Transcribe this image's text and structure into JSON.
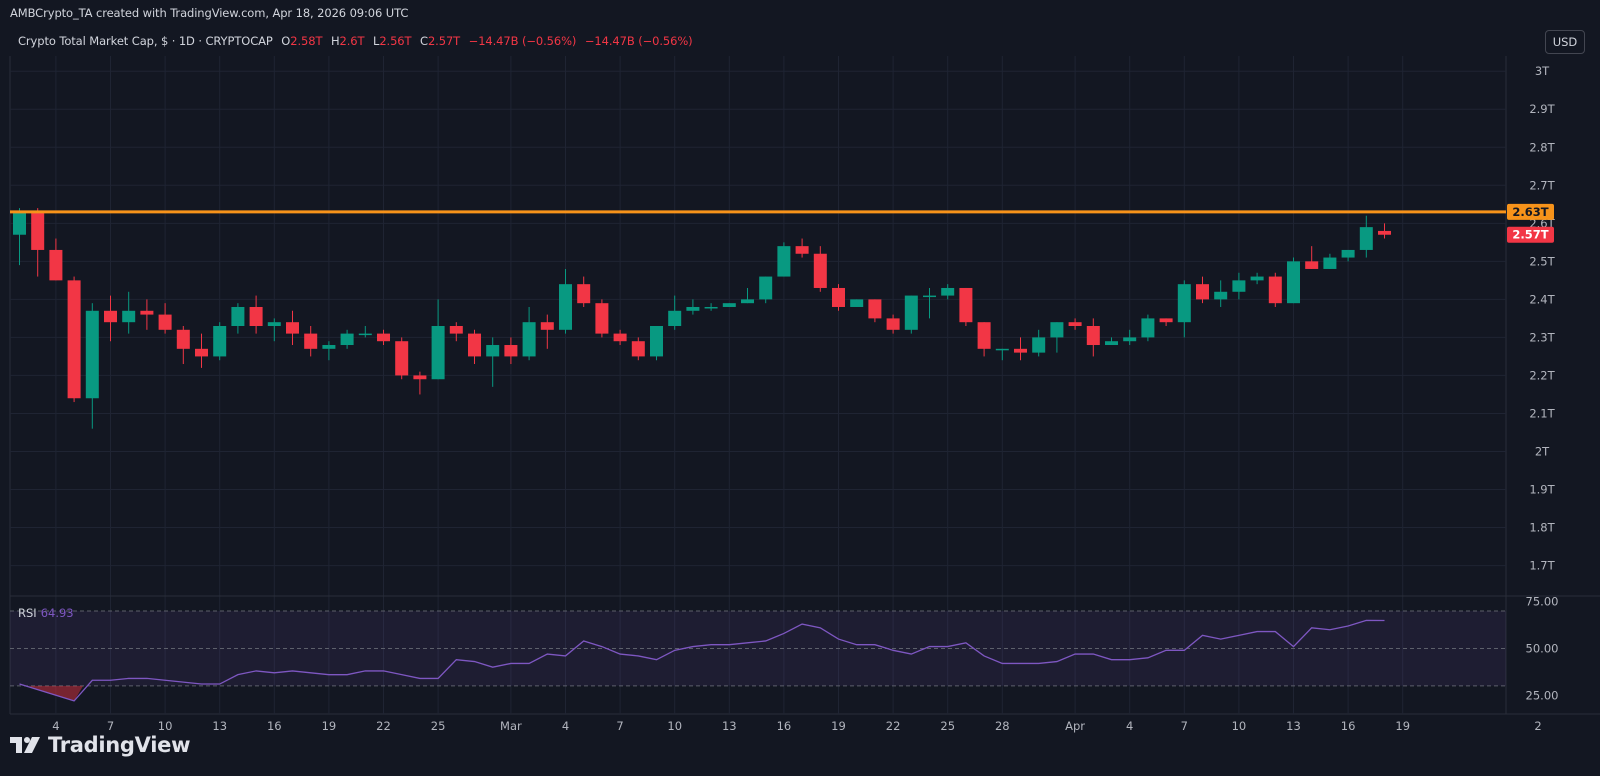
{
  "attribution": "AMBCrypto_TA created with TradingView.com, Apr 18, 2026 09:06 UTC",
  "currency_button": "USD",
  "brand": "TradingView",
  "legend": {
    "symbol": "Crypto Total Market Cap, $ · 1D · CRYPTOCAP",
    "open_key": "O",
    "open": "2.58T",
    "high_key": "H",
    "high": "2.6T",
    "low_key": "L",
    "low": "2.56T",
    "close_key": "C",
    "close": "2.57T",
    "change_abs": "−14.47B",
    "change_pct": "(−0.56%)",
    "change_abs2": "−14.47B",
    "change_pct2": "(−0.56%)"
  },
  "rsi": {
    "label": "RSI",
    "value": "64.93"
  },
  "colors": {
    "background": "#131722",
    "up": "#089981",
    "down": "#f23645",
    "level_line": "#f7931a",
    "rsi_line": "#7e57c2",
    "grid": "#1f2433"
  },
  "chart_data": [
    {
      "type": "candlestick",
      "title": "Crypto Total Market Cap, $ · 1D · CRYPTOCAP",
      "y_unit": "T",
      "ylim": [
        1.62,
        3.04
      ],
      "y_ticks": [
        "3T",
        "2.9T",
        "2.8T",
        "2.7T",
        "2.6T",
        "2.5T",
        "2.4T",
        "2.3T",
        "2.2T",
        "2.1T",
        "2T",
        "1.9T",
        "1.8T",
        "1.7T"
      ],
      "y_tick_values": [
        3.0,
        2.9,
        2.8,
        2.7,
        2.6,
        2.5,
        2.4,
        2.3,
        2.2,
        2.1,
        2.0,
        1.9,
        1.8,
        1.7
      ],
      "x_tick_labels": [
        "4",
        "7",
        "10",
        "13",
        "16",
        "19",
        "22",
        "25",
        "Mar",
        "4",
        "7",
        "10",
        "13",
        "16",
        "19",
        "22",
        "25",
        "28",
        "Apr",
        "4",
        "7",
        "10",
        "13",
        "16",
        "19",
        "2"
      ],
      "x_tick_dates": [
        "2026-02-04",
        "2026-02-07",
        "2026-02-10",
        "2026-02-13",
        "2026-02-16",
        "2026-02-19",
        "2026-02-22",
        "2026-02-25",
        "2026-03-01",
        "2026-03-04",
        "2026-03-07",
        "2026-03-10",
        "2026-03-13",
        "2026-03-16",
        "2026-03-19",
        "2026-03-22",
        "2026-03-25",
        "2026-03-28",
        "2026-04-01",
        "2026-04-04",
        "2026-04-07",
        "2026-04-10",
        "2026-04-13",
        "2026-04-16",
        "2026-04-19",
        "2026-05-02"
      ],
      "first_date": "2026-02-02",
      "horizontal_level": {
        "value": 2.63,
        "label": "2.63T"
      },
      "last_price": {
        "value": 2.57,
        "label": "2.57T"
      },
      "candles": [
        {
          "o": 2.57,
          "h": 2.64,
          "l": 2.49,
          "c": 2.63
        },
        {
          "o": 2.63,
          "h": 2.64,
          "l": 2.46,
          "c": 2.53
        },
        {
          "o": 2.53,
          "h": 2.56,
          "l": 2.45,
          "c": 2.45
        },
        {
          "o": 2.45,
          "h": 2.46,
          "l": 2.13,
          "c": 2.14
        },
        {
          "o": 2.14,
          "h": 2.39,
          "l": 2.06,
          "c": 2.37
        },
        {
          "o": 2.37,
          "h": 2.41,
          "l": 2.29,
          "c": 2.34
        },
        {
          "o": 2.34,
          "h": 2.42,
          "l": 2.31,
          "c": 2.37
        },
        {
          "o": 2.37,
          "h": 2.4,
          "l": 2.32,
          "c": 2.36
        },
        {
          "o": 2.36,
          "h": 2.39,
          "l": 2.31,
          "c": 2.32
        },
        {
          "o": 2.32,
          "h": 2.33,
          "l": 2.23,
          "c": 2.27
        },
        {
          "o": 2.27,
          "h": 2.31,
          "l": 2.22,
          "c": 2.25
        },
        {
          "o": 2.25,
          "h": 2.34,
          "l": 2.24,
          "c": 2.33
        },
        {
          "o": 2.33,
          "h": 2.39,
          "l": 2.31,
          "c": 2.38
        },
        {
          "o": 2.38,
          "h": 2.41,
          "l": 2.31,
          "c": 2.33
        },
        {
          "o": 2.33,
          "h": 2.35,
          "l": 2.29,
          "c": 2.34
        },
        {
          "o": 2.34,
          "h": 2.37,
          "l": 2.28,
          "c": 2.31
        },
        {
          "o": 2.31,
          "h": 2.33,
          "l": 2.25,
          "c": 2.27
        },
        {
          "o": 2.27,
          "h": 2.29,
          "l": 2.24,
          "c": 2.28
        },
        {
          "o": 2.28,
          "h": 2.32,
          "l": 2.27,
          "c": 2.31
        },
        {
          "o": 2.31,
          "h": 2.33,
          "l": 2.3,
          "c": 2.31
        },
        {
          "o": 2.31,
          "h": 2.32,
          "l": 2.28,
          "c": 2.29
        },
        {
          "o": 2.29,
          "h": 2.3,
          "l": 2.19,
          "c": 2.2
        },
        {
          "o": 2.2,
          "h": 2.21,
          "l": 2.15,
          "c": 2.19
        },
        {
          "o": 2.19,
          "h": 2.4,
          "l": 2.19,
          "c": 2.33
        },
        {
          "o": 2.33,
          "h": 2.34,
          "l": 2.29,
          "c": 2.31
        },
        {
          "o": 2.31,
          "h": 2.32,
          "l": 2.23,
          "c": 2.25
        },
        {
          "o": 2.25,
          "h": 2.3,
          "l": 2.17,
          "c": 2.28
        },
        {
          "o": 2.28,
          "h": 2.3,
          "l": 2.23,
          "c": 2.25
        },
        {
          "o": 2.25,
          "h": 2.38,
          "l": 2.24,
          "c": 2.34
        },
        {
          "o": 2.34,
          "h": 2.36,
          "l": 2.27,
          "c": 2.32
        },
        {
          "o": 2.32,
          "h": 2.48,
          "l": 2.31,
          "c": 2.44
        },
        {
          "o": 2.44,
          "h": 2.46,
          "l": 2.38,
          "c": 2.39
        },
        {
          "o": 2.39,
          "h": 2.4,
          "l": 2.3,
          "c": 2.31
        },
        {
          "o": 2.31,
          "h": 2.32,
          "l": 2.28,
          "c": 2.29
        },
        {
          "o": 2.29,
          "h": 2.3,
          "l": 2.24,
          "c": 2.25
        },
        {
          "o": 2.25,
          "h": 2.33,
          "l": 2.24,
          "c": 2.33
        },
        {
          "o": 2.33,
          "h": 2.41,
          "l": 2.32,
          "c": 2.37
        },
        {
          "o": 2.37,
          "h": 2.4,
          "l": 2.36,
          "c": 2.38
        },
        {
          "o": 2.38,
          "h": 2.39,
          "l": 2.37,
          "c": 2.38
        },
        {
          "o": 2.38,
          "h": 2.39,
          "l": 2.38,
          "c": 2.39
        },
        {
          "o": 2.39,
          "h": 2.43,
          "l": 2.39,
          "c": 2.4
        },
        {
          "o": 2.4,
          "h": 2.46,
          "l": 2.39,
          "c": 2.46
        },
        {
          "o": 2.46,
          "h": 2.55,
          "l": 2.46,
          "c": 2.54
        },
        {
          "o": 2.54,
          "h": 2.56,
          "l": 2.51,
          "c": 2.52
        },
        {
          "o": 2.52,
          "h": 2.54,
          "l": 2.42,
          "c": 2.43
        },
        {
          "o": 2.43,
          "h": 2.44,
          "l": 2.37,
          "c": 2.38
        },
        {
          "o": 2.38,
          "h": 2.4,
          "l": 2.38,
          "c": 2.4
        },
        {
          "o": 2.4,
          "h": 2.4,
          "l": 2.34,
          "c": 2.35
        },
        {
          "o": 2.35,
          "h": 2.36,
          "l": 2.31,
          "c": 2.32
        },
        {
          "o": 2.32,
          "h": 2.41,
          "l": 2.31,
          "c": 2.41
        },
        {
          "o": 2.41,
          "h": 2.43,
          "l": 2.35,
          "c": 2.41
        },
        {
          "o": 2.41,
          "h": 2.44,
          "l": 2.4,
          "c": 2.43
        },
        {
          "o": 2.43,
          "h": 2.43,
          "l": 2.33,
          "c": 2.34
        },
        {
          "o": 2.34,
          "h": 2.34,
          "l": 2.25,
          "c": 2.27
        },
        {
          "o": 2.27,
          "h": 2.27,
          "l": 2.24,
          "c": 2.27
        },
        {
          "o": 2.27,
          "h": 2.3,
          "l": 2.24,
          "c": 2.26
        },
        {
          "o": 2.26,
          "h": 2.32,
          "l": 2.25,
          "c": 2.3
        },
        {
          "o": 2.3,
          "h": 2.34,
          "l": 2.26,
          "c": 2.34
        },
        {
          "o": 2.34,
          "h": 2.35,
          "l": 2.32,
          "c": 2.33
        },
        {
          "o": 2.33,
          "h": 2.35,
          "l": 2.25,
          "c": 2.28
        },
        {
          "o": 2.28,
          "h": 2.3,
          "l": 2.28,
          "c": 2.29
        },
        {
          "o": 2.29,
          "h": 2.32,
          "l": 2.28,
          "c": 2.3
        },
        {
          "o": 2.3,
          "h": 2.36,
          "l": 2.29,
          "c": 2.35
        },
        {
          "o": 2.35,
          "h": 2.35,
          "l": 2.33,
          "c": 2.34
        },
        {
          "o": 2.34,
          "h": 2.45,
          "l": 2.3,
          "c": 2.44
        },
        {
          "o": 2.44,
          "h": 2.46,
          "l": 2.39,
          "c": 2.4
        },
        {
          "o": 2.4,
          "h": 2.45,
          "l": 2.38,
          "c": 2.42
        },
        {
          "o": 2.42,
          "h": 2.47,
          "l": 2.4,
          "c": 2.45
        },
        {
          "o": 2.45,
          "h": 2.47,
          "l": 2.44,
          "c": 2.46
        },
        {
          "o": 2.46,
          "h": 2.47,
          "l": 2.38,
          "c": 2.39
        },
        {
          "o": 2.39,
          "h": 2.51,
          "l": 2.39,
          "c": 2.5
        },
        {
          "o": 2.5,
          "h": 2.54,
          "l": 2.48,
          "c": 2.48
        },
        {
          "o": 2.48,
          "h": 2.52,
          "l": 2.48,
          "c": 2.51
        },
        {
          "o": 2.51,
          "h": 2.53,
          "l": 2.5,
          "c": 2.53
        },
        {
          "o": 2.53,
          "h": 2.62,
          "l": 2.51,
          "c": 2.59
        },
        {
          "o": 2.58,
          "h": 2.6,
          "l": 2.56,
          "c": 2.57
        }
      ]
    },
    {
      "type": "line",
      "title": "RSI",
      "ylim": [
        15,
        78
      ],
      "y_ticks": [
        "75.00",
        "50.00",
        "25.00"
      ],
      "y_tick_values": [
        75,
        50,
        25
      ],
      "band": [
        30,
        70
      ],
      "values": [
        31,
        28,
        25,
        22,
        33,
        33,
        34,
        34,
        33,
        32,
        31,
        31,
        36,
        38,
        37,
        38,
        37,
        36,
        36,
        38,
        38,
        36,
        34,
        34,
        44,
        43,
        40,
        42,
        42,
        47,
        46,
        54,
        51,
        47,
        46,
        44,
        49,
        51,
        52,
        52,
        53,
        54,
        58,
        63,
        61,
        55,
        52,
        52,
        49,
        47,
        51,
        51,
        53,
        46,
        42,
        42,
        42,
        43,
        47,
        47,
        44,
        44,
        45,
        49,
        49,
        57,
        55,
        57,
        59,
        59,
        51,
        61,
        60,
        62,
        65,
        64.93
      ]
    }
  ]
}
